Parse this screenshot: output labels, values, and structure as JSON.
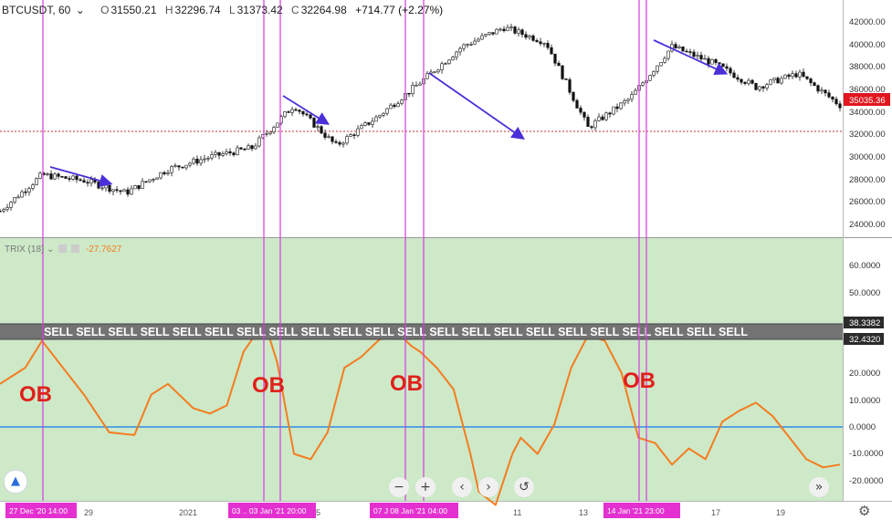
{
  "header": {
    "symbol": "BTCUSDT, 60",
    "chevron": "⌄",
    "open_label": "O",
    "open": "31550.21",
    "high_label": "H",
    "high": "32296.74",
    "low_label": "L",
    "low": "31373.42",
    "close_label": "C",
    "close": "32264.98",
    "change": "+714.77 (+2.27%)"
  },
  "trix_legend": {
    "label": "TRIX (18)",
    "value": "-27.7627"
  },
  "last_price_badge": "35035.36",
  "price_axis_ticks": [
    "42000.00",
    "40000.00",
    "38000.00",
    "36000.00",
    "34000.00",
    "32000.00",
    "30000.00",
    "28000.00",
    "26000.00",
    "24000.00"
  ],
  "trix_axis_ticks": [
    "60.0000",
    "50.0000",
    "40.0000",
    "30.0000",
    "20.0000",
    "10.0000",
    "0.0000",
    "-10.0000",
    "-20.0000"
  ],
  "trix_badges": [
    "38.3382",
    "32.4320"
  ],
  "time_axis_ticks": [
    "29",
    "2021",
    "5",
    "7",
    "11",
    "13",
    "17",
    "19"
  ],
  "time_highlights": [
    "27 Dec '20   14:00",
    "03 .. 03 Jan '21   20:00",
    "07 J  08 Jan '21   04:00",
    "14 Jan '21   23:00"
  ],
  "sell_banner": "SELL SELL SELL SELL SELL SELL SELL SELL SELL SELL SELL SELL SELL SELL SELL SELL SELL SELL SELL SELL SELL SELL",
  "annotations": [
    "OB",
    "OB",
    "OB",
    "OB"
  ],
  "nav_buttons": {
    "zoom_out": "−",
    "zoom_in": "+",
    "scroll_left": "‹",
    "scroll_right": "›",
    "reset": "↺",
    "forward": "»"
  },
  "colors": {
    "sell_banner": "#737373",
    "trix_line": "#f57c1f",
    "zone_fill": "#cde9c8",
    "vertical_markers": "#d63be0",
    "arrows": "#4b2fd8",
    "ob_text": "#e0201b",
    "zero_line": "#2f8ce6"
  },
  "chart_data": [
    {
      "type": "line",
      "title": "BTCUSDT, 60",
      "ylim": [
        23000,
        43000
      ],
      "x": [
        0,
        5,
        10,
        15,
        20,
        25,
        30,
        35,
        40,
        45,
        50,
        55,
        60,
        65,
        70,
        75,
        80,
        85,
        90,
        95,
        100
      ],
      "y": [
        25200,
        28400,
        27900,
        26800,
        28900,
        30000,
        30800,
        34600,
        31000,
        33600,
        36600,
        39800,
        41500,
        40200,
        32600,
        35200,
        39800,
        38300,
        36200,
        37400,
        34600
      ],
      "segments": [
        {
          "label": "→",
          "from": [
            55,
            182
          ],
          "to": [
            120,
            200
          ]
        }
      ]
    },
    {
      "type": "line",
      "title": "TRIX (18)",
      "ylim": [
        -30,
        70
      ],
      "zero_line": 0,
      "overbought_levels": [
        38.3382,
        32.432
      ],
      "x": [
        0,
        3,
        5,
        7,
        10,
        13,
        16,
        18,
        20,
        23,
        25,
        27,
        29,
        31,
        32,
        33,
        35,
        37,
        39,
        41,
        43,
        45,
        47,
        49,
        50,
        52,
        54,
        56,
        57,
        59,
        61,
        62,
        64,
        66,
        68,
        70,
        72,
        74,
        76,
        78,
        80,
        82,
        84,
        86,
        88,
        90,
        92,
        94,
        96,
        98,
        100
      ],
      "y": [
        16,
        22,
        32,
        24,
        12,
        -2,
        -3,
        12,
        16,
        7,
        5,
        8,
        28,
        37,
        34,
        24,
        -10,
        -12,
        -2,
        22,
        26,
        32,
        36,
        30,
        28,
        22,
        14,
        -10,
        -24,
        -29,
        -10,
        -4,
        -10,
        1,
        22,
        34,
        32,
        20,
        -4,
        -6,
        -14,
        -8,
        -12,
        2,
        6,
        9,
        4,
        -4,
        -12,
        -15,
        -14
      ]
    }
  ]
}
